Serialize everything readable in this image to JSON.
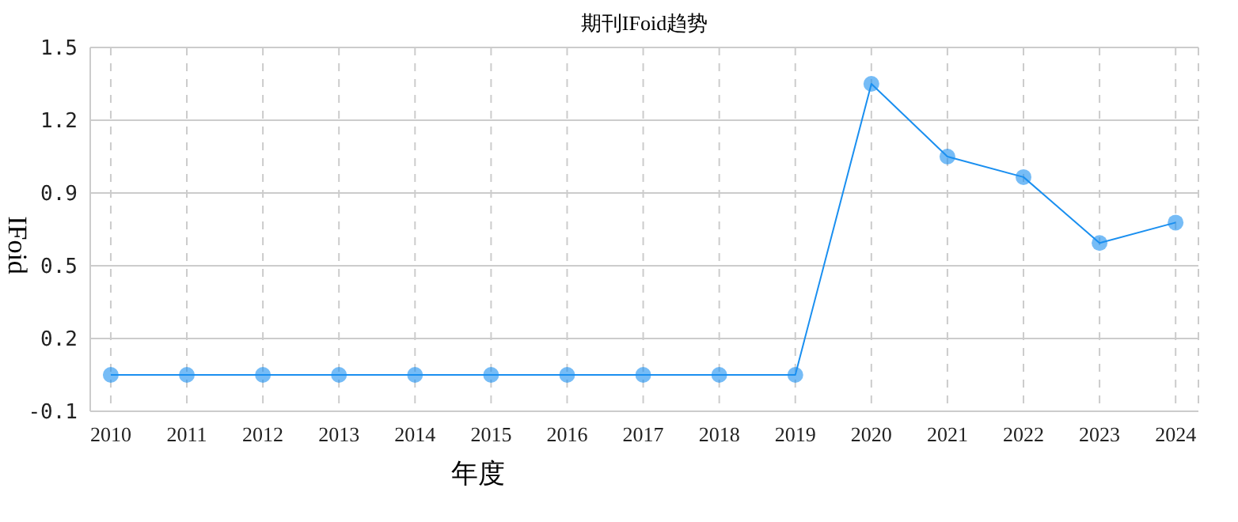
{
  "chart_data": {
    "type": "line",
    "title": "期刊IFoid趋势",
    "xlabel": "年度",
    "ylabel": "IFoid",
    "categories": [
      "2010",
      "2011",
      "2012",
      "2013",
      "2014",
      "2015",
      "2016",
      "2017",
      "2018",
      "2019",
      "2020",
      "2021",
      "2022",
      "2023",
      "2024"
    ],
    "series": [
      {
        "color": "#1a8ff0",
        "values": [
          0.06,
          0.06,
          0.06,
          0.06,
          0.06,
          0.06,
          0.06,
          0.06,
          0.06,
          0.06,
          1.34,
          1.02,
          0.93,
          0.64,
          0.73
        ]
      }
    ],
    "ylim": [
      -0.1,
      1.5
    ],
    "yticks": [
      -0.1,
      {
        "value": 0.22,
        "label": "0.2"
      },
      {
        "value": 0.54,
        "label": "0.5"
      },
      {
        "value": 0.86,
        "label": "0.9"
      },
      {
        "value": 1.18,
        "label": "1.2"
      },
      1.5
    ],
    "grid": true,
    "marker": "circle",
    "line_style": "solid",
    "legend": false
  }
}
